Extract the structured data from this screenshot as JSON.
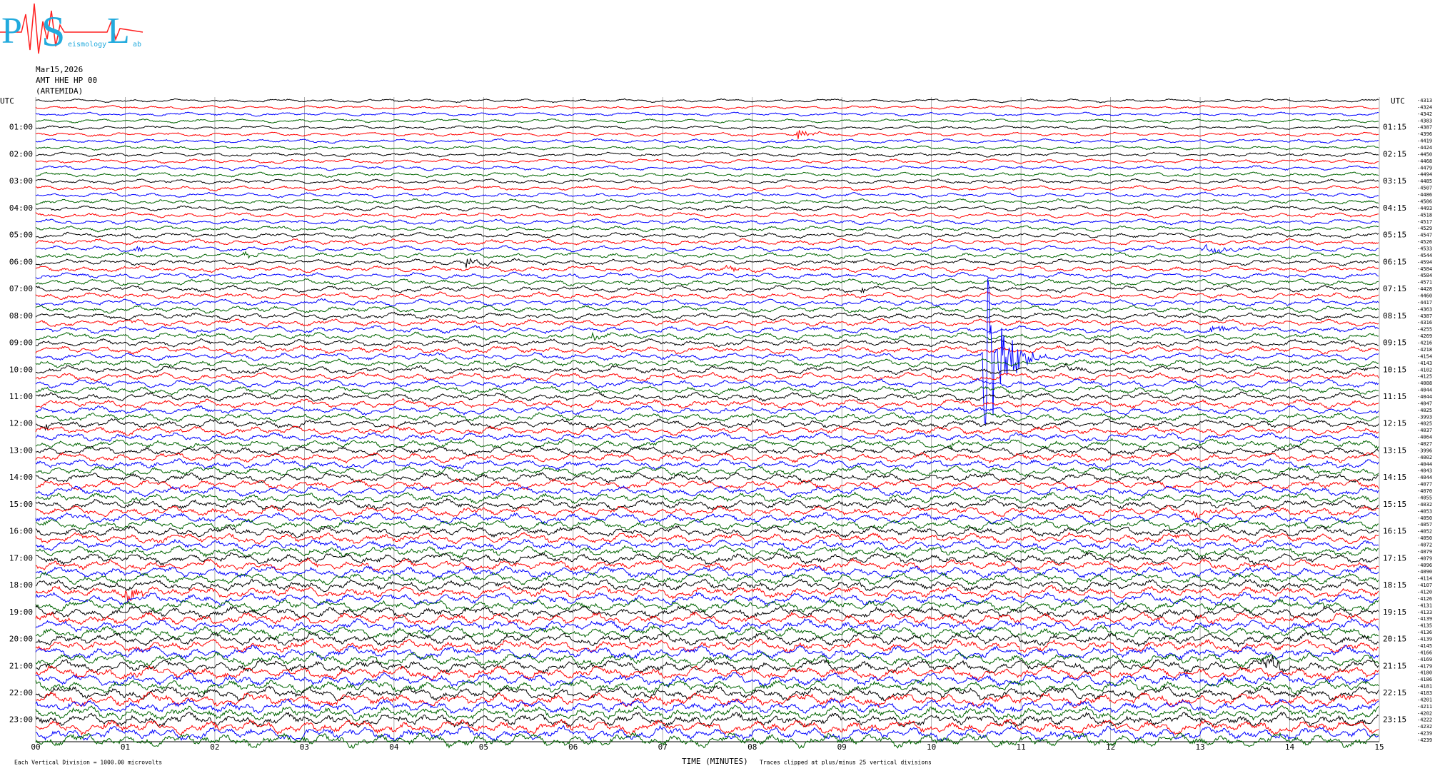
{
  "header": {
    "logo": {
      "letters": [
        "P",
        "S",
        "L"
      ],
      "words": [
        "eismology",
        "ab"
      ]
    },
    "date": "Mar15,2026",
    "station": "AMT HHE HP 00",
    "name": "(ARTEMIDA)"
  },
  "helicorder": {
    "utc_left": "UTC",
    "utc_right": "UTC",
    "trace_colors": [
      "#000000",
      "#ff0000",
      "#0000ff",
      "#006400"
    ],
    "left_times": [
      "01:00",
      "02:00",
      "03:00",
      "04:00",
      "05:00",
      "06:00",
      "07:00",
      "08:00",
      "09:00",
      "10:00",
      "11:00",
      "12:00",
      "13:00",
      "14:00",
      "15:00",
      "16:00",
      "17:00",
      "18:00",
      "19:00",
      "20:00",
      "21:00",
      "22:00",
      "23:00"
    ],
    "right_times": [
      "01:15",
      "02:15",
      "03:15",
      "04:15",
      "05:15",
      "06:15",
      "07:15",
      "08:15",
      "09:15",
      "10:15",
      "11:15",
      "12:15",
      "13:15",
      "14:15",
      "15:15",
      "16:15",
      "17:15",
      "18:15",
      "19:15",
      "20:15",
      "21:15",
      "22:15",
      "23:15"
    ],
    "trace_labels": [
      "-4313",
      "-4324",
      "-4342",
      "-4383",
      "-4387",
      "-4396",
      "-4419",
      "-4424",
      "-4450",
      "-4468",
      "-4479",
      "-4494",
      "-4485",
      "-4507",
      "-4486",
      "-4506",
      "-4493",
      "-4518",
      "-4517",
      "-4529",
      "-4547",
      "-4526",
      "-4533",
      "-4544",
      "-4594",
      "-4584",
      "-4584",
      "-4571",
      "-4428",
      "-4460",
      "-4417",
      "-4363",
      "-4387",
      "-4316",
      "-4255",
      "-4269",
      "-4216",
      "-4218",
      "-4154",
      "-4143",
      "-4102",
      "-4125",
      "-4088",
      "-4044",
      "-4044",
      "-4047",
      "-4025",
      "-3993",
      "-4025",
      "-4037",
      "-4064",
      "-4027",
      "-3996",
      "-4002",
      "-4044",
      "-4043",
      "-4044",
      "-4077",
      "-4070",
      "-4055",
      "-4032",
      "-4053",
      "-4050",
      "-4057",
      "-4052",
      "-4050",
      "-4072",
      "-4079",
      "-4079",
      "-4096",
      "-4090",
      "-4114",
      "-4107",
      "-4120",
      "-4126",
      "-4131",
      "-4133",
      "-4139",
      "-4135",
      "-4136",
      "-4139",
      "-4145",
      "-4166",
      "-4169",
      "-4179",
      "-4180",
      "-4186",
      "-4181",
      "-4183",
      "-4201",
      "-4211",
      "-4202",
      "-4222",
      "-4232",
      "-4239",
      "-4239"
    ],
    "x_ticks": [
      "00",
      "01",
      "02",
      "03",
      "04",
      "05",
      "06",
      "07",
      "08",
      "09",
      "10",
      "11",
      "12",
      "13",
      "14",
      "15"
    ],
    "x_title": "TIME (MINUTES)",
    "footer_left": "Each Vertical Division = 1000.00 microvolts",
    "footer_right": "Traces clipped at plus/minus 25 vertical divisions"
  }
}
